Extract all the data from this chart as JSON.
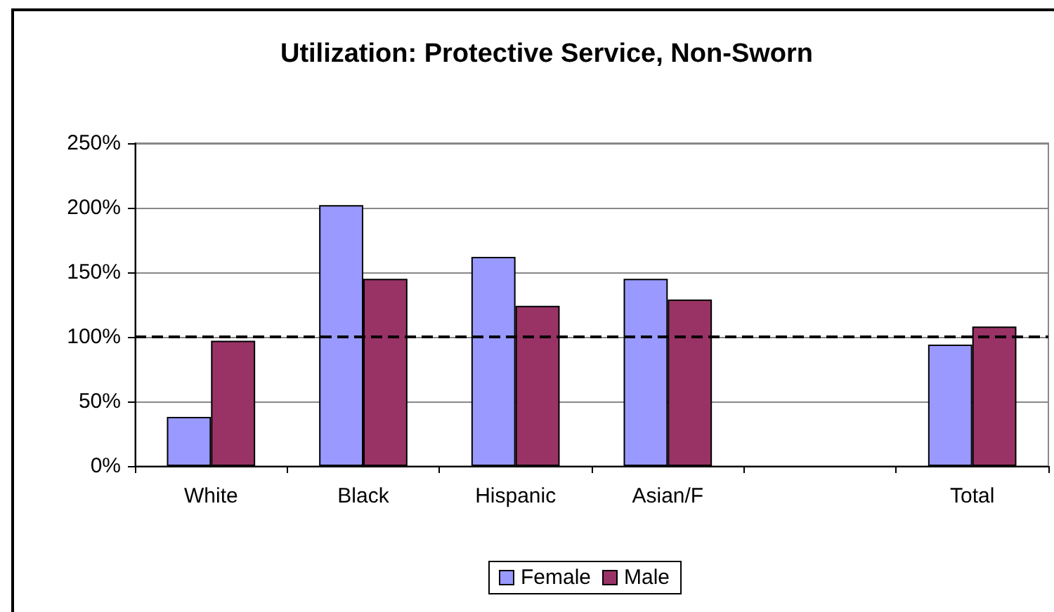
{
  "chart_data": {
    "type": "bar",
    "title": "Utilization: Protective Service, Non-Sworn",
    "categories": [
      "White",
      "Black",
      "Hispanic",
      "Asian/F",
      null,
      "Total"
    ],
    "series": [
      {
        "name": "Female",
        "color": "#9999ff",
        "values": [
          38,
          202,
          162,
          145,
          null,
          94
        ]
      },
      {
        "name": "Male",
        "color": "#993366",
        "values": [
          97,
          145,
          124,
          129,
          null,
          108
        ]
      }
    ],
    "ylim": [
      0,
      250
    ],
    "yticks": [
      {
        "value": 0,
        "label": "0%"
      },
      {
        "value": 50,
        "label": "50%"
      },
      {
        "value": 100,
        "label": "100%"
      },
      {
        "value": 150,
        "label": "150%"
      },
      {
        "value": 200,
        "label": "200%"
      },
      {
        "value": 250,
        "label": "250%"
      }
    ],
    "grid": "y",
    "legend": "bottom",
    "ref_lines": [
      {
        "axis": "y",
        "value": 100,
        "color": "#000000",
        "line_style": "dashed"
      }
    ]
  }
}
